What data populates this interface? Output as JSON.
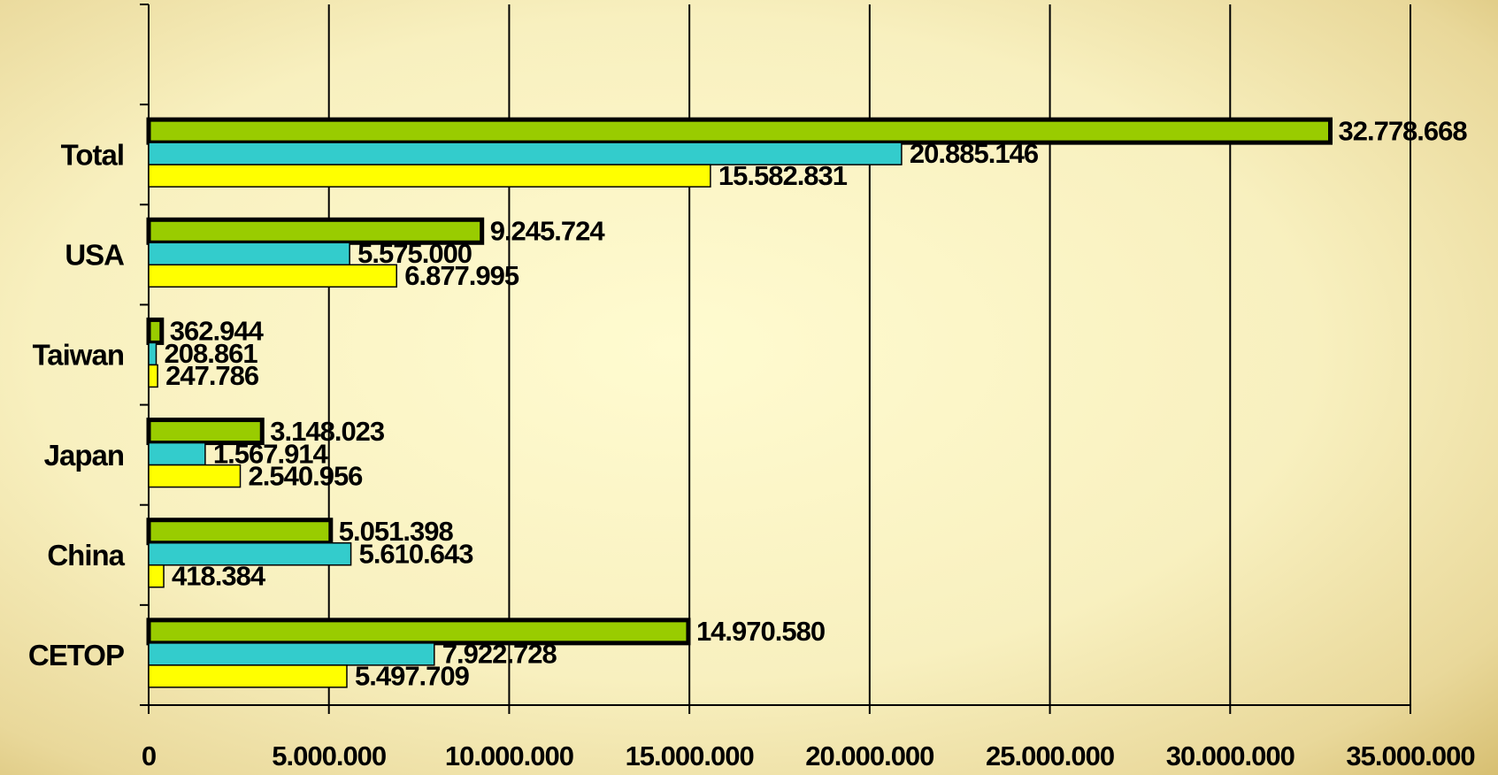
{
  "chart_data": {
    "type": "hbar",
    "categories": [
      "CETOP",
      "China",
      "Japan",
      "Taiwan",
      "USA",
      "Total"
    ],
    "series": [
      {
        "color": "#99cc00",
        "values": [
          14970580,
          5051398,
          3148023,
          362944,
          9245724,
          32778668
        ],
        "value_labels": [
          "14.970.580",
          "5.051.398",
          "3.148.023",
          "362.944",
          "9.245.724",
          "32.778.668"
        ]
      },
      {
        "color": "#33cccc",
        "values": [
          7922728,
          5610643,
          1567914,
          208861,
          5575000,
          20885146
        ],
        "value_labels": [
          "7.922.728",
          "5.610.643",
          "1.567.914",
          "208.861",
          "5.575.000",
          "20.885.146"
        ]
      },
      {
        "color": "#ffff00",
        "values": [
          5497709,
          418384,
          2540956,
          247786,
          6877995,
          15582831
        ],
        "value_labels": [
          "5.497.709",
          "418.384",
          "2.540.956",
          "247.786",
          "6.877.995",
          "15.582.831"
        ]
      }
    ],
    "xlim": [
      0,
      35000000
    ],
    "xticks": [
      0,
      {
        "value": 5000000,
        "label": "5.000.000"
      },
      {
        "value": 10000000,
        "label": "10.000.000"
      },
      {
        "value": 15000000,
        "label": "15.000.000"
      },
      {
        "value": 20000000,
        "label": "20.000.000"
      },
      {
        "value": 25000000,
        "label": "25.000.000"
      },
      {
        "value": 30000000,
        "label": "30.000.000"
      },
      {
        "value": 35000000,
        "label": "35.000.000"
      }
    ],
    "grid": true
  }
}
